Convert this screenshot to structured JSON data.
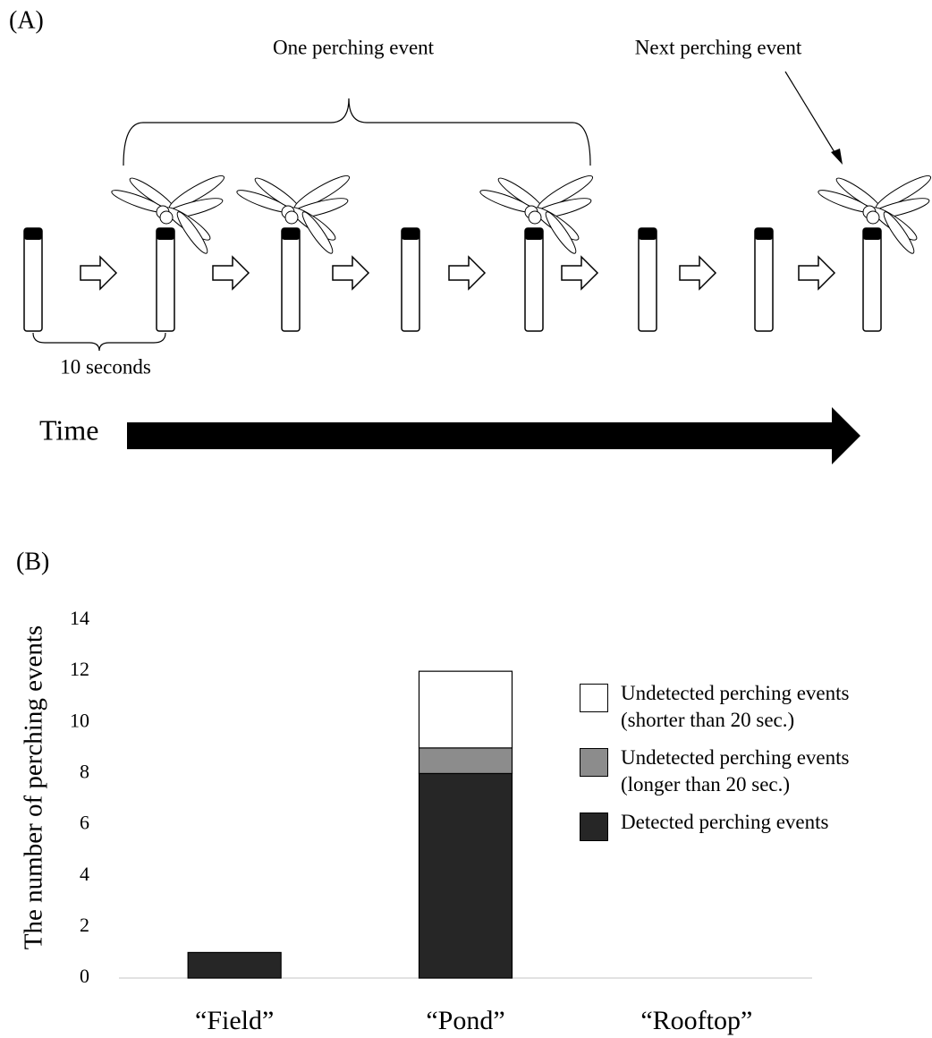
{
  "panel_a": {
    "label": "(A)",
    "one_event": "One perching event",
    "next_event": "Next perching event",
    "interval": "10 seconds",
    "time": "Time"
  },
  "chart_data": {
    "type": "stacked-bar",
    "panel_label": "(B)",
    "y_label": "The number of perching events",
    "categories": [
      "“Field”",
      "“Pond”",
      "“Rooftop”"
    ],
    "series": [
      {
        "name": "Detected perching events",
        "color": "#262626",
        "values": [
          1,
          8,
          0
        ]
      },
      {
        "name": "Undetected perching events (longer than 20 sec.)",
        "color": "#8c8c8c",
        "values": [
          0,
          1,
          0
        ]
      },
      {
        "name": "Undetected perching events (shorter than 20 sec.)",
        "color": "#ffffff",
        "values": [
          0,
          3,
          0
        ]
      }
    ],
    "ylim": [
      0,
      14
    ],
    "yticks": [
      0,
      2,
      4,
      6,
      8,
      10,
      12,
      14
    ],
    "grid": false
  }
}
